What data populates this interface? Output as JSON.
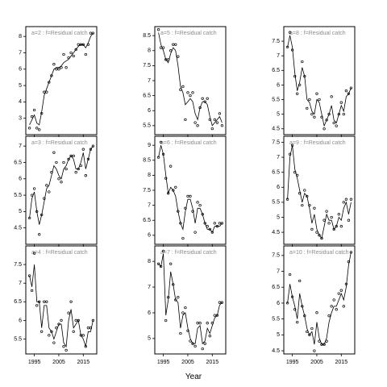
{
  "chart_data": {
    "xlabel": "Year",
    "x_ticks": [
      1995,
      2005,
      2015
    ],
    "panels": [
      {
        "title": "a=2 : f=Residual catch",
        "type": "scatter",
        "x": [
          1993,
          1994,
          1995,
          1996,
          1997,
          1998,
          1999,
          2000,
          2001,
          2002,
          2003,
          2004,
          2005,
          2006,
          2007,
          2008,
          2009,
          2010,
          2011,
          2012,
          2013,
          2014,
          2015,
          2016,
          2017,
          2018,
          2019
        ],
        "y": [
          2.4,
          3.1,
          3.5,
          2.4,
          2.3,
          3.3,
          4.6,
          4.6,
          5.2,
          5.6,
          6.3,
          6.0,
          6.0,
          6.1,
          6.9,
          6.1,
          6.7,
          7.0,
          6.8,
          7.2,
          7.5,
          7.5,
          7.5,
          6.9,
          7.5,
          8.2,
          8.2
        ],
        "fit": [
          2.6,
          2.9,
          3.2,
          2.7,
          2.6,
          3.4,
          4.4,
          4.8,
          5.2,
          5.6,
          6.0,
          6.1,
          6.1,
          6.2,
          6.4,
          6.5,
          6.6,
          6.8,
          7.0,
          7.2,
          7.4,
          7.5,
          7.5,
          7.3,
          7.6,
          8.0,
          8.2
        ],
        "yticks": [
          3,
          4,
          5,
          6,
          7,
          8
        ],
        "ylim": [
          2.0,
          8.6
        ]
      },
      {
        "title": "a=5 : f=Residual catch",
        "type": "scatter",
        "x": [
          1993,
          1994,
          1995,
          1996,
          1997,
          1998,
          1999,
          2000,
          2001,
          2002,
          2003,
          2004,
          2005,
          2006,
          2007,
          2008,
          2009,
          2010,
          2011,
          2012,
          2013,
          2014,
          2015,
          2016,
          2017,
          2018,
          2019
        ],
        "y": [
          8.7,
          8.1,
          8.1,
          7.7,
          7.7,
          8.0,
          8.2,
          8.2,
          7.8,
          6.7,
          6.8,
          5.7,
          6.6,
          6.5,
          6.6,
          5.6,
          5.5,
          6.1,
          6.4,
          6.3,
          6.4,
          5.7,
          5.4,
          5.7,
          5.6,
          5.9,
          5.5
        ],
        "fit": [
          8.6,
          8.2,
          8.0,
          7.7,
          7.6,
          7.9,
          8.1,
          8.0,
          7.5,
          6.8,
          6.6,
          6.2,
          6.3,
          6.4,
          6.3,
          5.9,
          5.7,
          6.1,
          6.3,
          6.3,
          6.2,
          5.8,
          5.5,
          5.6,
          5.7,
          5.8,
          5.6
        ],
        "yticks": [
          5.5,
          6.0,
          6.5,
          7.0,
          7.5,
          8.0,
          8.5
        ],
        "ylim": [
          5.2,
          8.8
        ]
      },
      {
        "title": "a=8 : f=Residual catch",
        "type": "scatter",
        "x": [
          1993,
          1994,
          1995,
          1996,
          1997,
          1998,
          1999,
          2000,
          2001,
          2002,
          2003,
          2004,
          2005,
          2006,
          2007,
          2008,
          2009,
          2010,
          2011,
          2012,
          2013,
          2014,
          2015,
          2016,
          2017,
          2018,
          2019
        ],
        "y": [
          7.3,
          7.8,
          7.2,
          6.3,
          5.7,
          6.0,
          6.8,
          6.3,
          5.2,
          5.5,
          5.0,
          4.9,
          5.7,
          5.5,
          4.9,
          4.5,
          4.8,
          5.0,
          5.6,
          4.7,
          4.6,
          5.0,
          5.4,
          5.0,
          5.8,
          5.7,
          5.9
        ],
        "fit": [
          7.3,
          7.7,
          7.3,
          6.4,
          5.8,
          6.1,
          6.6,
          6.3,
          5.5,
          5.4,
          5.1,
          5.0,
          5.5,
          5.4,
          5.0,
          4.6,
          4.8,
          5.0,
          5.3,
          4.8,
          4.7,
          5.0,
          5.3,
          5.1,
          5.6,
          5.7,
          5.9
        ],
        "yticks": [
          4.5,
          5.0,
          5.5,
          6.0,
          6.5,
          7.0,
          7.5
        ],
        "ylim": [
          4.3,
          8.0
        ]
      },
      {
        "title": "a=3 : f=Residual catch",
        "type": "scatter",
        "x": [
          1993,
          1994,
          1995,
          1996,
          1997,
          1998,
          1999,
          2000,
          2001,
          2002,
          2003,
          2004,
          2005,
          2006,
          2007,
          2008,
          2009,
          2010,
          2011,
          2012,
          2013,
          2014,
          2015,
          2016,
          2017,
          2018,
          2019
        ],
        "y": [
          4.8,
          5.5,
          5.7,
          5.0,
          4.3,
          4.9,
          5.4,
          5.8,
          5.6,
          6.2,
          6.8,
          6.5,
          6.0,
          5.9,
          6.5,
          6.3,
          6.6,
          6.7,
          6.7,
          6.2,
          6.3,
          6.4,
          6.9,
          6.1,
          6.6,
          6.9,
          7.0
        ],
        "fit": [
          4.8,
          5.4,
          5.6,
          5.0,
          4.6,
          4.9,
          5.3,
          5.7,
          5.8,
          6.1,
          6.4,
          6.3,
          6.1,
          6.0,
          6.3,
          6.4,
          6.6,
          6.7,
          6.6,
          6.3,
          6.3,
          6.5,
          6.8,
          6.3,
          6.6,
          6.9,
          7.0
        ],
        "yticks": [
          4.5,
          5.0,
          5.5,
          6.0,
          6.5,
          7.0
        ],
        "ylim": [
          4.0,
          7.3
        ]
      },
      {
        "title": "a=6 : f=Residual catch",
        "type": "scatter",
        "x": [
          1993,
          1994,
          1995,
          1996,
          1997,
          1998,
          1999,
          2000,
          2001,
          2002,
          2003,
          2004,
          2005,
          2006,
          2007,
          2008,
          2009,
          2010,
          2011,
          2012,
          2013,
          2014,
          2015,
          2016,
          2017,
          2018,
          2019
        ],
        "y": [
          8.6,
          9.1,
          8.7,
          7.9,
          7.4,
          8.3,
          7.5,
          7.6,
          6.8,
          6.4,
          5.9,
          6.9,
          7.3,
          7.3,
          6.8,
          6.1,
          7.1,
          7.0,
          6.7,
          6.4,
          6.3,
          6.2,
          6.1,
          6.4,
          6.3,
          6.4,
          6.4
        ],
        "fit": [
          8.6,
          9.0,
          8.7,
          8.0,
          7.4,
          7.6,
          7.5,
          7.3,
          6.8,
          6.4,
          6.2,
          6.8,
          7.2,
          7.2,
          6.9,
          6.4,
          6.9,
          6.9,
          6.7,
          6.4,
          6.2,
          6.2,
          6.1,
          6.3,
          6.3,
          6.3,
          6.4
        ],
        "yticks": [
          6.0,
          6.5,
          7.0,
          7.5,
          8.0,
          8.5,
          9.0
        ],
        "ylim": [
          5.7,
          9.3
        ]
      },
      {
        "title": "a=9 : f=Residual catch",
        "type": "scatter",
        "x": [
          1993,
          1994,
          1995,
          1996,
          1997,
          1998,
          1999,
          2000,
          2001,
          2002,
          2003,
          2004,
          2005,
          2006,
          2007,
          2008,
          2009,
          2010,
          2011,
          2012,
          2013,
          2014,
          2015,
          2016,
          2017,
          2018,
          2019
        ],
        "y": [
          5.6,
          7.1,
          7.4,
          6.5,
          6.4,
          5.8,
          5.4,
          5.9,
          5.7,
          5.4,
          4.6,
          5.3,
          4.5,
          4.4,
          4.3,
          4.9,
          5.2,
          4.8,
          5.0,
          4.6,
          4.7,
          5.1,
          4.7,
          5.5,
          5.6,
          4.9,
          5.6
        ],
        "fit": [
          5.6,
          7.0,
          7.4,
          6.6,
          6.3,
          5.9,
          5.5,
          5.8,
          5.7,
          5.3,
          4.8,
          5.1,
          4.6,
          4.4,
          4.3,
          4.7,
          5.1,
          4.9,
          4.9,
          4.6,
          4.7,
          5.0,
          4.9,
          5.3,
          5.5,
          5.1,
          5.5
        ],
        "yticks": [
          4.5,
          5.0,
          5.5,
          6.0,
          6.5,
          7.0,
          7.5
        ],
        "ylim": [
          4.1,
          7.7
        ]
      },
      {
        "title": "a=4 : f=Residual catch",
        "type": "scatter",
        "x": [
          1993,
          1994,
          1995,
          1996,
          1997,
          1998,
          1999,
          2000,
          2001,
          2002,
          2003,
          2004,
          2005,
          2006,
          2007,
          2008,
          2009,
          2010,
          2011,
          2012,
          2013,
          2014,
          2015,
          2016,
          2017,
          2018,
          2019
        ],
        "y": [
          7.2,
          6.8,
          7.8,
          6.4,
          6.5,
          5.7,
          6.5,
          6.5,
          5.6,
          5.7,
          5.4,
          5.8,
          5.9,
          6.0,
          5.3,
          5.2,
          6.2,
          6.5,
          5.7,
          6.0,
          6.0,
          5.6,
          5.6,
          5.3,
          5.8,
          5.8,
          6.0
        ],
        "fit": [
          7.2,
          6.9,
          7.5,
          6.5,
          6.5,
          5.8,
          6.4,
          6.4,
          5.8,
          5.7,
          5.5,
          5.7,
          5.9,
          5.9,
          5.4,
          5.3,
          6.0,
          6.3,
          5.8,
          5.9,
          6.0,
          5.6,
          5.5,
          5.3,
          5.7,
          5.7,
          6.0
        ],
        "yticks": [
          5.5,
          6.0,
          6.5,
          7.0,
          7.5
        ],
        "ylim": [
          5.1,
          8.0
        ]
      },
      {
        "title": "a=7 : f=Residual catch",
        "type": "scatter",
        "x": [
          1993,
          1994,
          1995,
          1996,
          1997,
          1998,
          1999,
          2000,
          2001,
          2002,
          2003,
          2004,
          2005,
          2006,
          2007,
          2008,
          2009,
          2010,
          2011,
          2012,
          2013,
          2014,
          2015,
          2016,
          2017,
          2018,
          2019
        ],
        "y": [
          7.9,
          7.8,
          8.4,
          5.7,
          6.6,
          7.9,
          7.1,
          6.5,
          6.6,
          5.2,
          6.0,
          6.2,
          5.3,
          4.9,
          4.8,
          4.7,
          5.6,
          5.6,
          4.6,
          4.8,
          5.6,
          5.1,
          5.6,
          5.9,
          5.9,
          6.4,
          6.4
        ],
        "fit": [
          7.9,
          7.8,
          8.3,
          5.9,
          6.5,
          7.6,
          7.1,
          6.5,
          6.4,
          5.4,
          5.9,
          6.0,
          5.4,
          5.0,
          4.8,
          4.8,
          5.4,
          5.5,
          4.8,
          4.9,
          5.4,
          5.2,
          5.5,
          5.8,
          5.9,
          6.3,
          6.4
        ],
        "yticks": [
          5,
          6,
          7,
          8
        ],
        "ylim": [
          4.4,
          8.6
        ]
      },
      {
        "title": "a=10 : f=Residual catch",
        "type": "scatter",
        "x": [
          1993,
          1994,
          1995,
          1996,
          1997,
          1998,
          1999,
          2000,
          2001,
          2002,
          2003,
          2004,
          2005,
          2006,
          2007,
          2008,
          2009,
          2010,
          2011,
          2012,
          2013,
          2014,
          2015,
          2016,
          2017,
          2018,
          2019
        ],
        "y": [
          6.0,
          6.9,
          6.2,
          5.8,
          5.4,
          6.7,
          5.9,
          5.6,
          5.1,
          5.0,
          5.2,
          4.5,
          5.7,
          4.8,
          4.7,
          4.7,
          4.8,
          5.6,
          5.9,
          6.1,
          5.8,
          6.3,
          6.4,
          5.9,
          6.6,
          7.3,
          7.6
        ],
        "fit": [
          6.0,
          6.6,
          6.2,
          5.9,
          5.5,
          6.3,
          5.9,
          5.6,
          5.2,
          5.0,
          5.1,
          4.7,
          5.4,
          4.9,
          4.7,
          4.7,
          4.9,
          5.4,
          5.7,
          5.9,
          5.9,
          6.1,
          6.3,
          6.1,
          6.5,
          7.2,
          7.6
        ],
        "yticks": [
          4.5,
          5.0,
          5.5,
          6.0,
          6.5,
          7.0,
          7.5
        ],
        "ylim": [
          4.4,
          7.8
        ]
      }
    ]
  }
}
